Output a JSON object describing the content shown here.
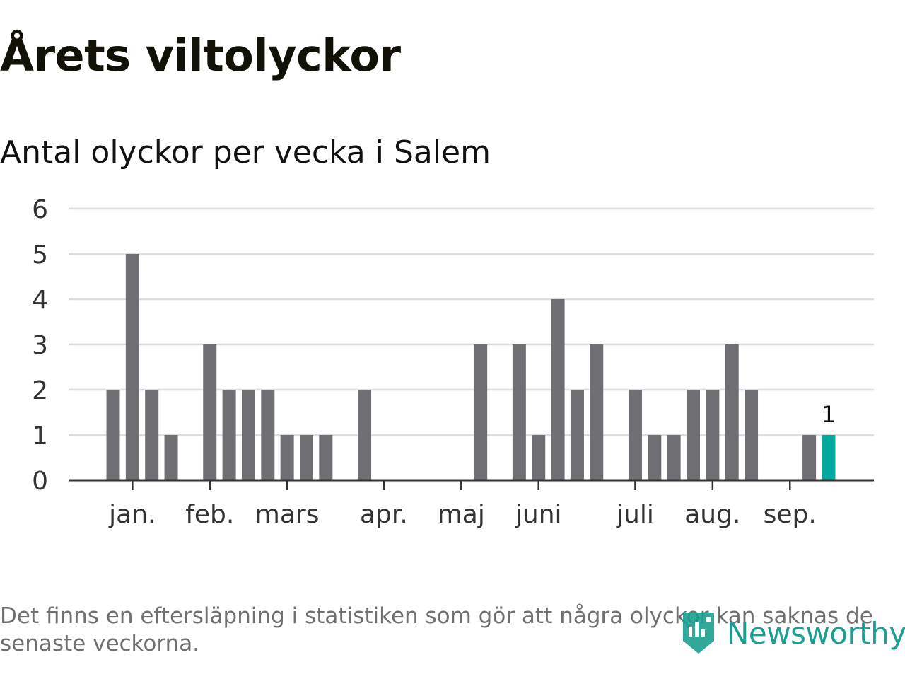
{
  "header": {
    "title": "Årets viltolyckor",
    "subtitle": "Antal olyckor per vecka i Salem"
  },
  "chart_data": {
    "type": "bar",
    "title": "Årets viltolyckor",
    "subtitle": "Antal olyckor per vecka i Salem",
    "xlabel": "",
    "ylabel": "",
    "unit": "olyckor per vecka",
    "ylim": [
      0,
      6
    ],
    "yticks": [
      0,
      1,
      2,
      3,
      4,
      5,
      6
    ],
    "grid": true,
    "weeks": [
      1,
      2,
      3,
      4,
      5,
      6,
      7,
      8,
      9,
      10,
      11,
      12,
      13,
      14,
      15,
      16,
      17,
      18,
      19,
      20,
      21,
      22,
      23,
      24,
      25,
      26,
      27,
      28,
      29,
      30,
      31,
      32,
      33,
      34,
      35,
      36,
      37,
      38
    ],
    "values": [
      2,
      5,
      2,
      1,
      0,
      3,
      2,
      2,
      2,
      1,
      1,
      1,
      0,
      2,
      0,
      0,
      0,
      0,
      0,
      3,
      0,
      3,
      1,
      4,
      2,
      3,
      0,
      2,
      1,
      1,
      2,
      2,
      3,
      2,
      0,
      0,
      1,
      1
    ],
    "highlight_index": 37,
    "highlight_label": "1",
    "month_ticks": [
      {
        "label": "jan.",
        "position": 1
      },
      {
        "label": "feb.",
        "position": 5
      },
      {
        "label": "mars",
        "position": 9
      },
      {
        "label": "apr.",
        "position": 14
      },
      {
        "label": "maj",
        "position": 18
      },
      {
        "label": "juni",
        "position": 22
      },
      {
        "label": "juli",
        "position": 27
      },
      {
        "label": "aug.",
        "position": 31
      },
      {
        "label": "sep.",
        "position": 35
      }
    ],
    "colors": {
      "bar": "#6f6e73",
      "highlight": "#00a99d",
      "grid": "#dddddd",
      "axis": "#333333",
      "tick_label": "#333333"
    }
  },
  "footer": {
    "note": "Det finns en eftersläpning i statistiken som gör att några olyckor kan saknas de senaste veckorna.",
    "brand": "Newsworthy",
    "brand_icon": "newsworthy-logo-icon",
    "brand_color": "#1c9e90"
  }
}
